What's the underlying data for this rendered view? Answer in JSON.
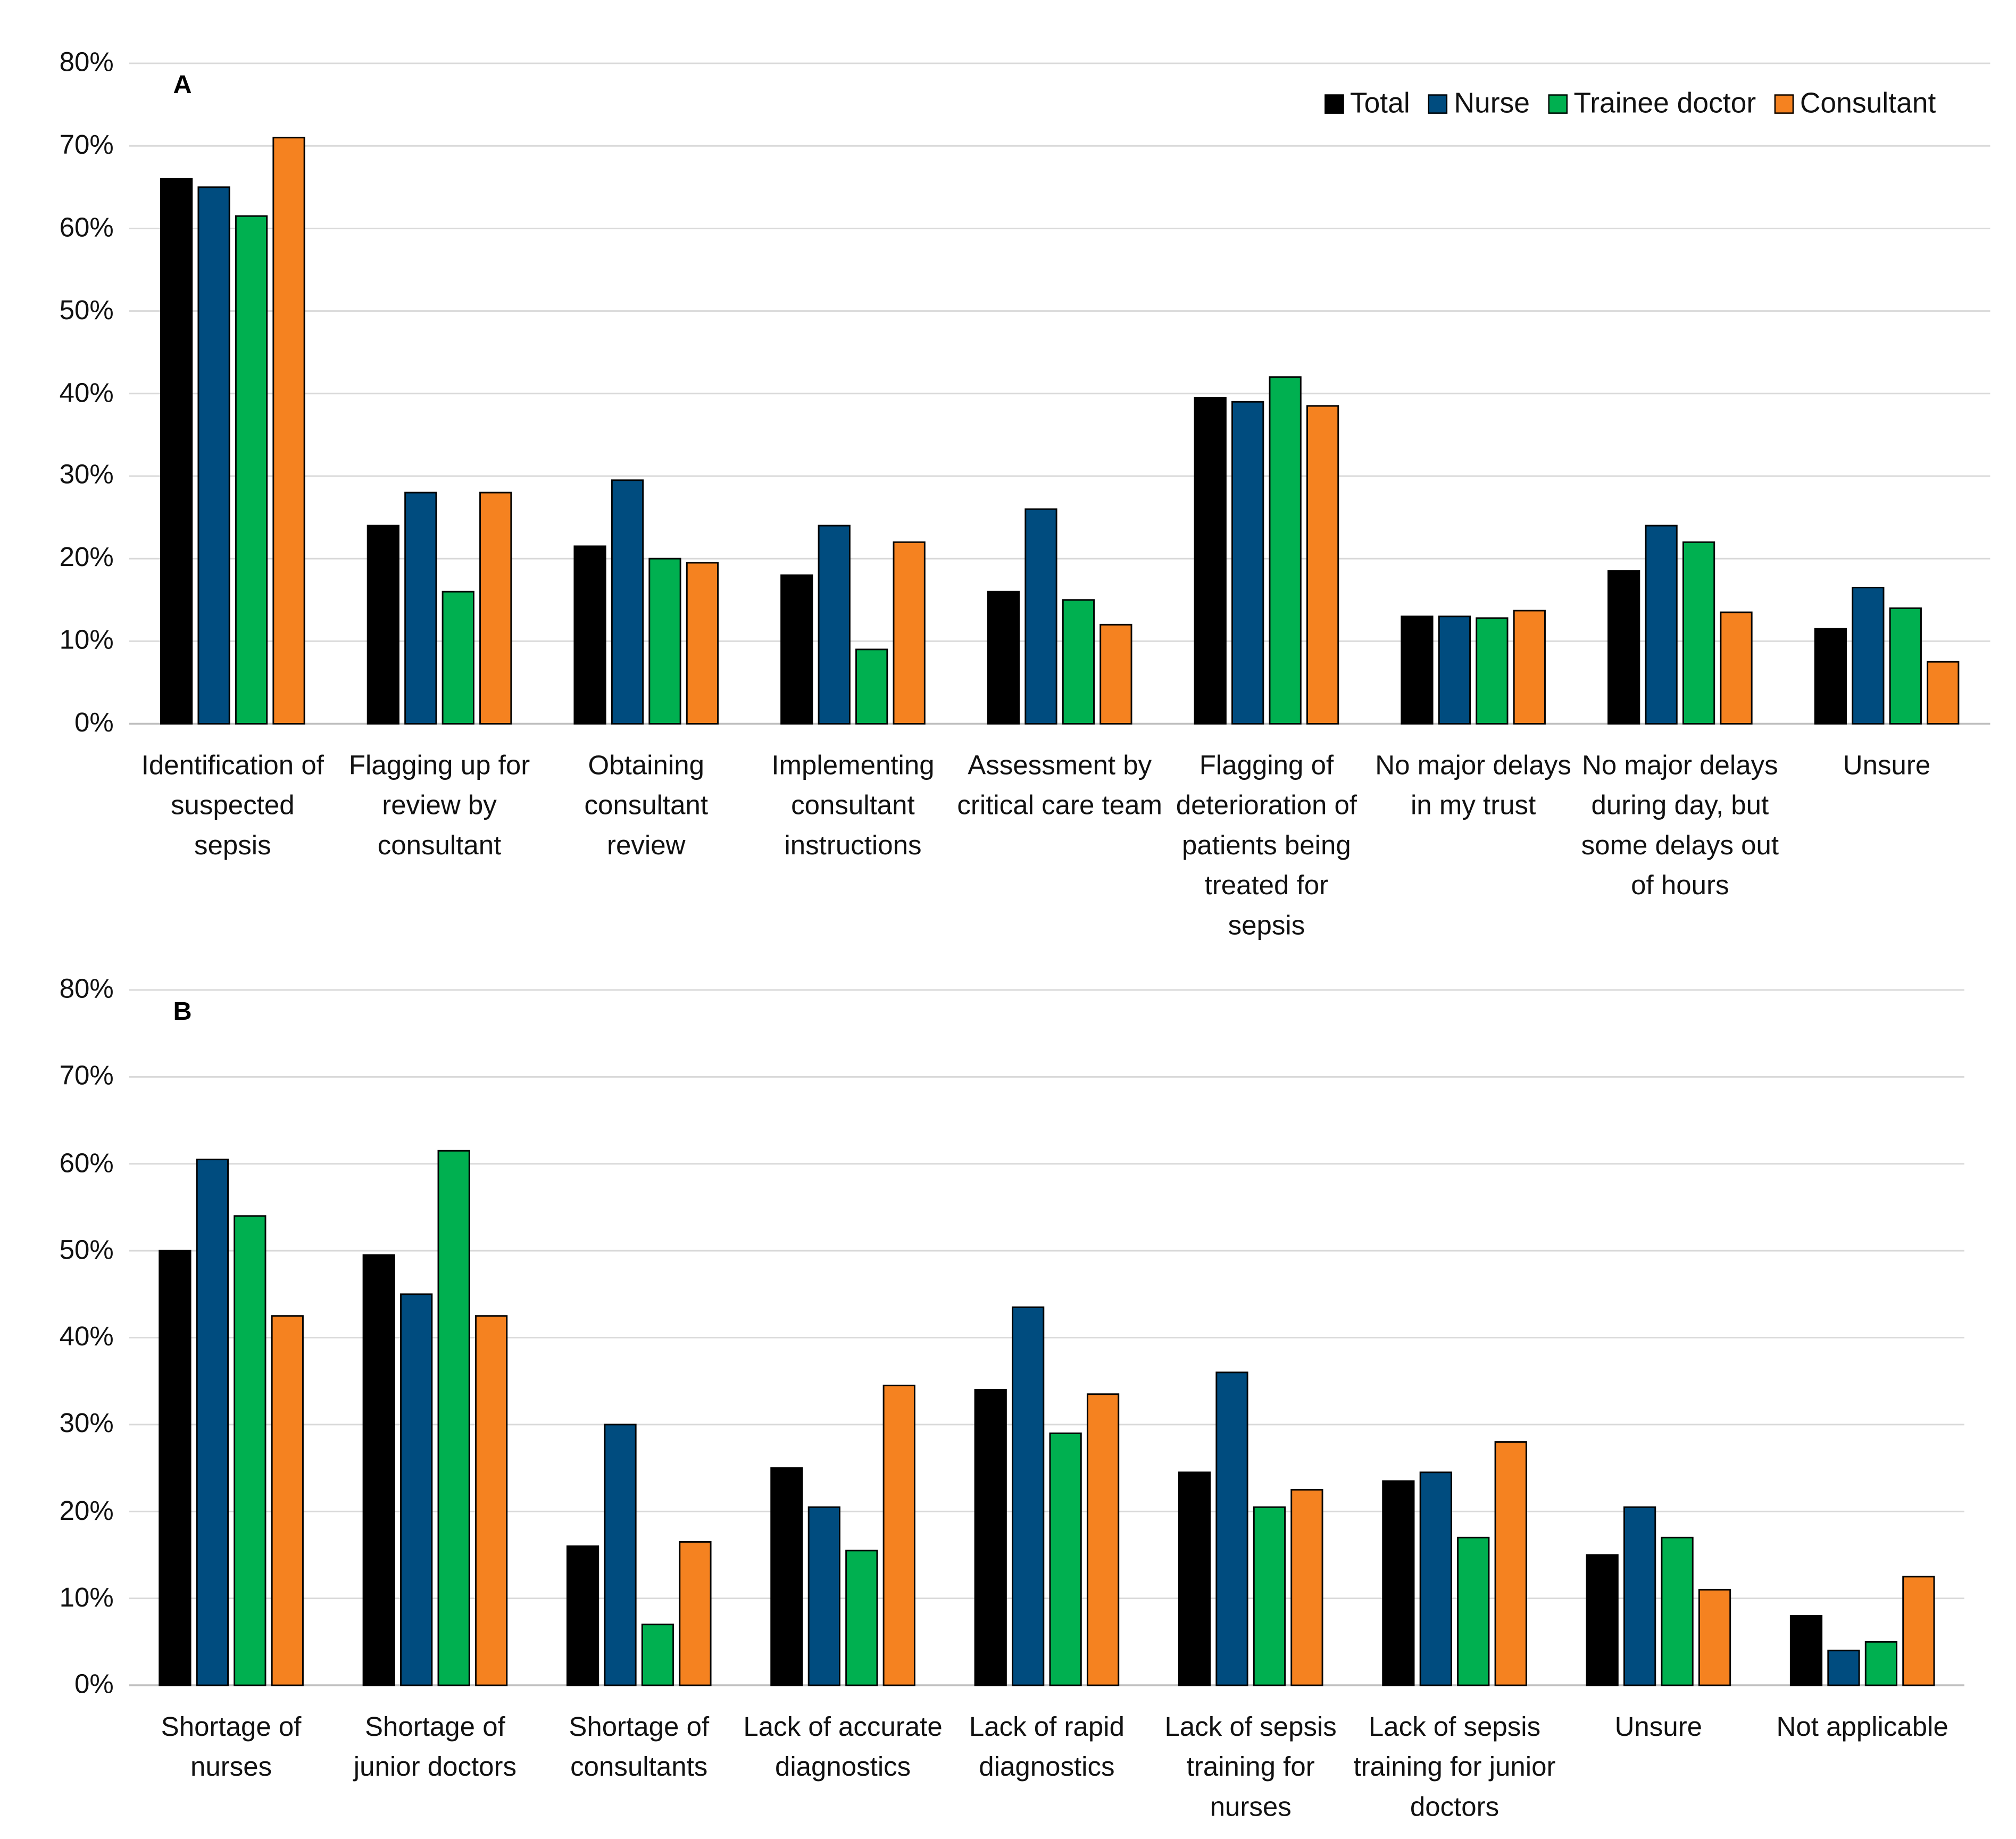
{
  "chart_data": [
    {
      "type": "bar",
      "panel_label": "A",
      "categories": [
        "Identification of suspected sepsis",
        "Flagging up for review by consultant",
        "Obtaining consultant review",
        "Implementing consultant instructions",
        "Assessment by critical care team",
        "Flagging of deterioration of patients being treated for sepsis",
        "No major delays in my trust",
        "No major delays during day, but some delays out of hours",
        "Unsure"
      ],
      "series": [
        {
          "name": "Total",
          "color": "#000000",
          "values": [
            66,
            24,
            21.5,
            18,
            16,
            39.5,
            13,
            18.5,
            11.5
          ]
        },
        {
          "name": "Nurse",
          "color": "#004c7f",
          "values": [
            65,
            28,
            29.5,
            24,
            26,
            39,
            13,
            24,
            16.5
          ]
        },
        {
          "name": "Trainee doctor",
          "color": "#00b050",
          "values": [
            61.5,
            16,
            20,
            9,
            15,
            42,
            12.8,
            22,
            14
          ]
        },
        {
          "name": "Consultant",
          "color": "#f58220",
          "values": [
            71,
            28,
            19.5,
            22,
            12,
            38.5,
            13.7,
            13.5,
            7.5
          ]
        }
      ],
      "ylim": [
        0,
        80
      ],
      "yticks": [
        {
          "value": 0,
          "label": "0%"
        },
        {
          "value": 10,
          "label": "10%"
        },
        {
          "value": 20,
          "label": "20%"
        },
        {
          "value": 30,
          "label": "30%"
        },
        {
          "value": 40,
          "label": "40%"
        },
        {
          "value": 50,
          "label": "50%"
        },
        {
          "value": 60,
          "label": "60%"
        },
        {
          "value": 70,
          "label": "70%"
        },
        {
          "value": 80,
          "label": "80%"
        }
      ],
      "grid": true,
      "legend": "upper right"
    },
    {
      "type": "bar",
      "panel_label": "B",
      "categories": [
        "Shortage of nurses",
        "Shortage of junior doctors",
        "Shortage of consultants",
        "Lack of accurate diagnostics",
        "Lack of rapid diagnostics",
        "Lack of sepsis training for nurses",
        "Lack of sepsis training for junior doctors",
        "Unsure",
        "Not applicable"
      ],
      "series": [
        {
          "color": "#000000",
          "values": [
            50,
            49.5,
            16,
            25,
            34,
            24.5,
            23.5,
            15,
            8
          ]
        },
        {
          "color": "#004c7f",
          "values": [
            60.5,
            45,
            30,
            20.5,
            43.5,
            36,
            24.5,
            20.5,
            4
          ]
        },
        {
          "color": "#00b050",
          "values": [
            54,
            61.5,
            7,
            15.5,
            29,
            20.5,
            17,
            17,
            5
          ]
        },
        {
          "color": "#f58220",
          "values": [
            42.5,
            42.5,
            16.5,
            34.5,
            33.5,
            22.5,
            28,
            11,
            12.5
          ]
        }
      ],
      "ylim": [
        0,
        80
      ],
      "yticks": [
        {
          "value": 0,
          "label": "0%"
        },
        {
          "value": 10,
          "label": "10%"
        },
        {
          "value": 20,
          "label": "20%"
        },
        {
          "value": 30,
          "label": "30%"
        },
        {
          "value": 40,
          "label": "40%"
        },
        {
          "value": 50,
          "label": "50%"
        },
        {
          "value": 60,
          "label": "60%"
        },
        {
          "value": 70,
          "label": "70%"
        },
        {
          "value": 80,
          "label": "80%"
        }
      ],
      "grid": true
    }
  ]
}
